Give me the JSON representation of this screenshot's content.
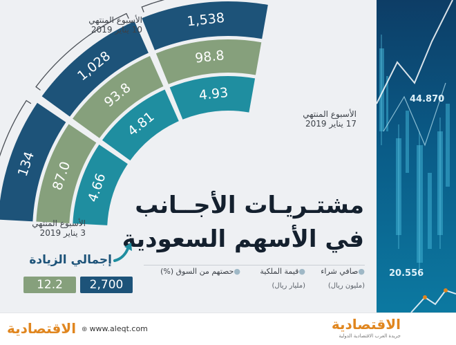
{
  "title": {
    "line1": "مشتـريـات الأجــانب",
    "line2": "في الأسهم السعودية"
  },
  "chart_data": {
    "type": "bar",
    "categories": [
      "الأسبوع المنتهي 3 يناير 2019",
      "الأسبوع المنتهي 10 يناير 2019",
      "الأسبوع المنتهي 17 يناير 2019"
    ],
    "series": [
      {
        "name": "صافي شراء",
        "unit": "مليون ريال",
        "values": [
          134,
          1028,
          1538
        ],
        "labels": [
          "134",
          "1,028",
          "1,538"
        ],
        "color": "#1d5379"
      },
      {
        "name": "قيمة الملكية",
        "unit": "مليار ريال",
        "values": [
          87.0,
          93.8,
          98.8
        ],
        "labels": [
          "87.0",
          "93.8",
          "98.8"
        ],
        "color": "#86a07c"
      },
      {
        "name": "حصتهم من السوق (%)",
        "values": [
          4.66,
          4.81,
          4.93
        ],
        "labels": [
          "4.66",
          "4.81",
          "4.93"
        ],
        "color": "#1f8ea0"
      }
    ]
  },
  "weeks": {
    "w1": {
      "line1": "الأسبوع المنتهي",
      "line2": "3 يناير 2019"
    },
    "w2": {
      "line1": "الأسبوع المنتهي",
      "line2": "10 يناير 2019"
    },
    "w3": {
      "line1": "الأسبوع المنتهي",
      "line2": "17 يناير 2019"
    }
  },
  "legend": {
    "item1": "صافي شراء",
    "item1_unit": "(مليون ريال)",
    "item2": "قيمة الملكية",
    "item2_unit": "(مليار ريال)",
    "item3": "حصتهم من السوق (%)"
  },
  "total": {
    "label": "إجمالي الزيادة",
    "net_purchase": "2,700",
    "ownership": "12.2"
  },
  "background_numbers": [
    "44.870",
    "20.556"
  ],
  "footer": {
    "brand": "الاقتصادية",
    "tagline": "جريدة العرب الاقتصادية الدولية",
    "url": "www.aleqt.com"
  },
  "colors": {
    "dark_blue": "#1d5379",
    "sage_green": "#86a07c",
    "teal": "#1f8ea0",
    "brand_orange": "#e0861f",
    "legend_dot": "#9fb8c6"
  }
}
